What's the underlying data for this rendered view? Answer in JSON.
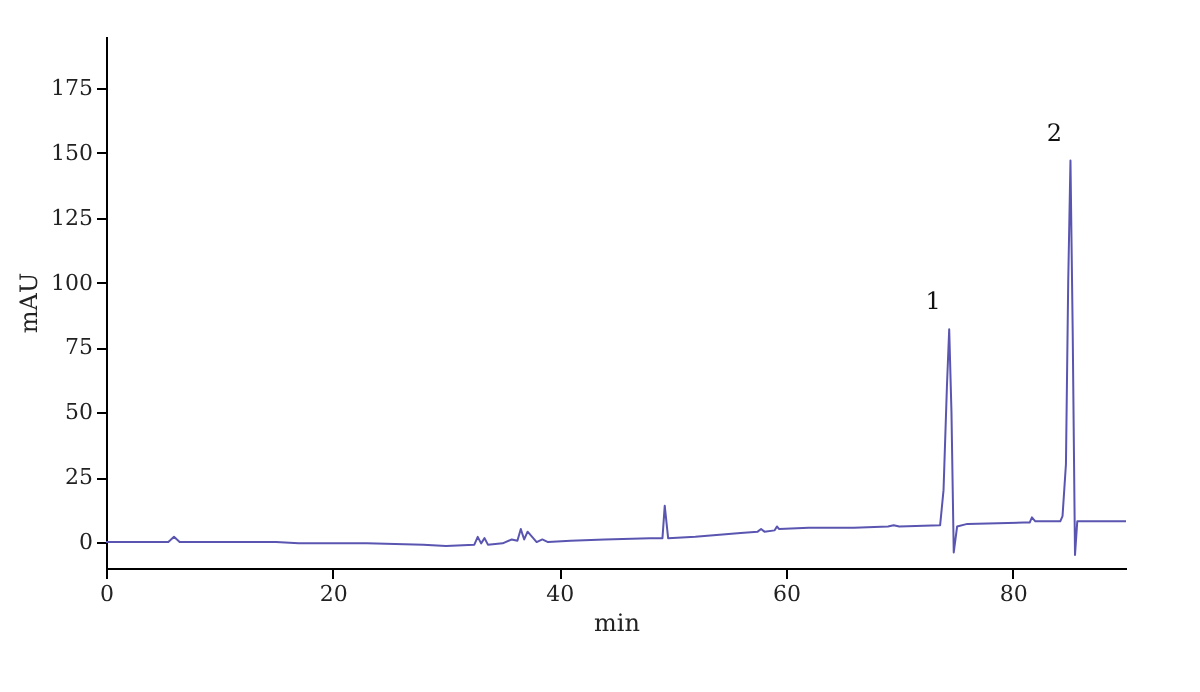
{
  "chart_data": {
    "type": "line",
    "xlabel": "min",
    "ylabel": "mAU",
    "x": [
      0,
      5.5,
      6,
      6.5,
      15,
      17,
      23,
      28,
      30,
      32.5,
      32.8,
      33.1,
      33.4,
      33.7,
      35,
      35.8,
      36.3,
      36.6,
      36.9,
      37.2,
      38,
      38.5,
      39,
      41,
      44,
      48,
      49.1,
      49.3,
      49.6,
      52,
      56,
      57.5,
      57.8,
      58.1,
      59,
      59.2,
      59.4,
      62,
      66,
      69,
      69.5,
      70,
      73.6,
      73.9,
      74.2,
      74.4,
      74.6,
      74.8,
      75.1,
      76,
      81,
      81.5,
      81.7,
      82,
      84.2,
      84.4,
      84.7,
      84.9,
      85.1,
      85.3,
      85.5,
      85.7,
      86.5,
      90
    ],
    "series": [
      {
        "color": "#5a55b0",
        "values": [
          0,
          0,
          2,
          0,
          0,
          -0.5,
          -0.5,
          -1,
          -1.5,
          -1,
          2,
          -0.5,
          1.5,
          -1,
          -0.5,
          1,
          0.5,
          5,
          1,
          4,
          0,
          1,
          0,
          0.5,
          1,
          1.5,
          1.5,
          14,
          1.5,
          2,
          3.5,
          4,
          5,
          4,
          4.5,
          6,
          5,
          5.5,
          5.5,
          6,
          6.5,
          6,
          6.5,
          20,
          60,
          82,
          50,
          -4,
          6,
          7,
          7.5,
          7.5,
          9.5,
          8,
          8,
          10,
          30,
          100,
          147,
          80,
          -5,
          8,
          8,
          8
        ]
      }
    ],
    "xlim": [
      0,
      90
    ],
    "xticks": [
      0,
      20,
      40,
      60,
      80
    ],
    "ylim": [
      -10,
      195
    ],
    "yticks": [
      0,
      25,
      50,
      75,
      100,
      125,
      150,
      175
    ],
    "annotations": [
      {
        "text": "1",
        "x": 74.4,
        "y": 82
      },
      {
        "text": "2",
        "x": 85.1,
        "y": 147
      }
    ],
    "grid": false
  }
}
